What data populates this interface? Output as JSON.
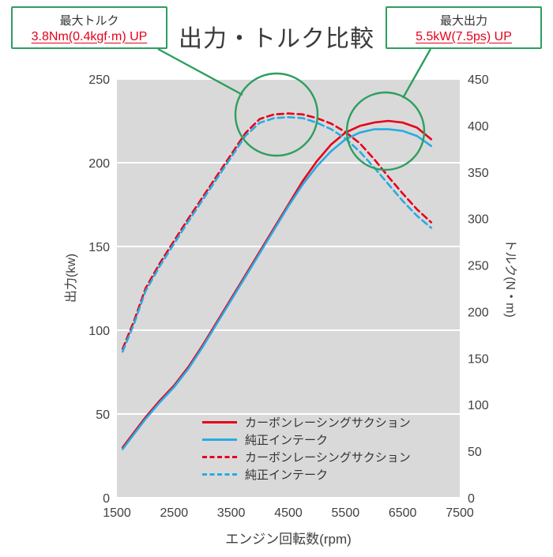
{
  "annotations": {
    "max_torque": {
      "title": "最大トルク",
      "value": "3.8Nm(0.4kgf·m) UP"
    },
    "max_power": {
      "title": "最大出力",
      "value": "5.5kW(7.5ps) UP"
    }
  },
  "colors": {
    "accent_green": "#2e9e5f",
    "accent_red": "#e60019",
    "line_blue": "#29abe2",
    "plot_bg": "#d9d9d9",
    "grid": "#ffffff",
    "tick_text": "#404040"
  },
  "chart_data": {
    "type": "line",
    "title": "出力・トルク比較",
    "xlabel": "エンジン回転数(rpm)",
    "ylabel_left": "出力(kw)",
    "ylabel_right": "トルク(N・m)",
    "xlim": [
      1500,
      7500
    ],
    "ylim_left": [
      0,
      250
    ],
    "ylim_right": [
      0,
      450
    ],
    "x_ticks": [
      1500,
      2500,
      3500,
      4500,
      5500,
      6500,
      7500
    ],
    "y_ticks_left": [
      0,
      50,
      100,
      150,
      200,
      250
    ],
    "y_ticks_right": [
      0,
      50,
      100,
      150,
      200,
      250,
      300,
      350,
      400,
      450
    ],
    "grid": "horizontal-white-lines-on-gray",
    "legend_position": "inside-bottom-center",
    "x": [
      1600,
      1800,
      2000,
      2250,
      2500,
      2750,
      3000,
      3250,
      3500,
      3750,
      4000,
      4250,
      4500,
      4750,
      5000,
      5250,
      5500,
      5750,
      6000,
      6250,
      6500,
      6750,
      7000
    ],
    "series": [
      {
        "name": "カーボンレーシングサクション",
        "axis": "left",
        "style": "solid",
        "color": "#e60019",
        "unit": "kW",
        "values": [
          30,
          39,
          48,
          58,
          67,
          78,
          91,
          105,
          119,
          133,
          147,
          161,
          175,
          189,
          201,
          211,
          218,
          222,
          224,
          225,
          224,
          221,
          214
        ]
      },
      {
        "name": "純正インテーク",
        "axis": "left",
        "style": "solid",
        "color": "#29abe2",
        "unit": "kW",
        "values": [
          29,
          38,
          47,
          57,
          66,
          77,
          90,
          104,
          118,
          132,
          146,
          160,
          174,
          187,
          198,
          207,
          214,
          218,
          220,
          220,
          219,
          216,
          210
        ]
      },
      {
        "name": "カーボンレーシングサクション",
        "axis": "right",
        "style": "dashed",
        "color": "#e60019",
        "unit": "N·m",
        "values": [
          160,
          190,
          225,
          252,
          276,
          300,
          323,
          346,
          369,
          392,
          407,
          412,
          413,
          412,
          408,
          402,
          393,
          381,
          364,
          345,
          327,
          310,
          296
        ]
      },
      {
        "name": "純正インテーク",
        "axis": "right",
        "style": "dashed",
        "color": "#29abe2",
        "unit": "N·m",
        "values": [
          157,
          187,
          222,
          249,
          273,
          297,
          320,
          343,
          366,
          389,
          403,
          408,
          409,
          408,
          403,
          396,
          386,
          372,
          355,
          337,
          319,
          303,
          290
        ]
      }
    ]
  }
}
